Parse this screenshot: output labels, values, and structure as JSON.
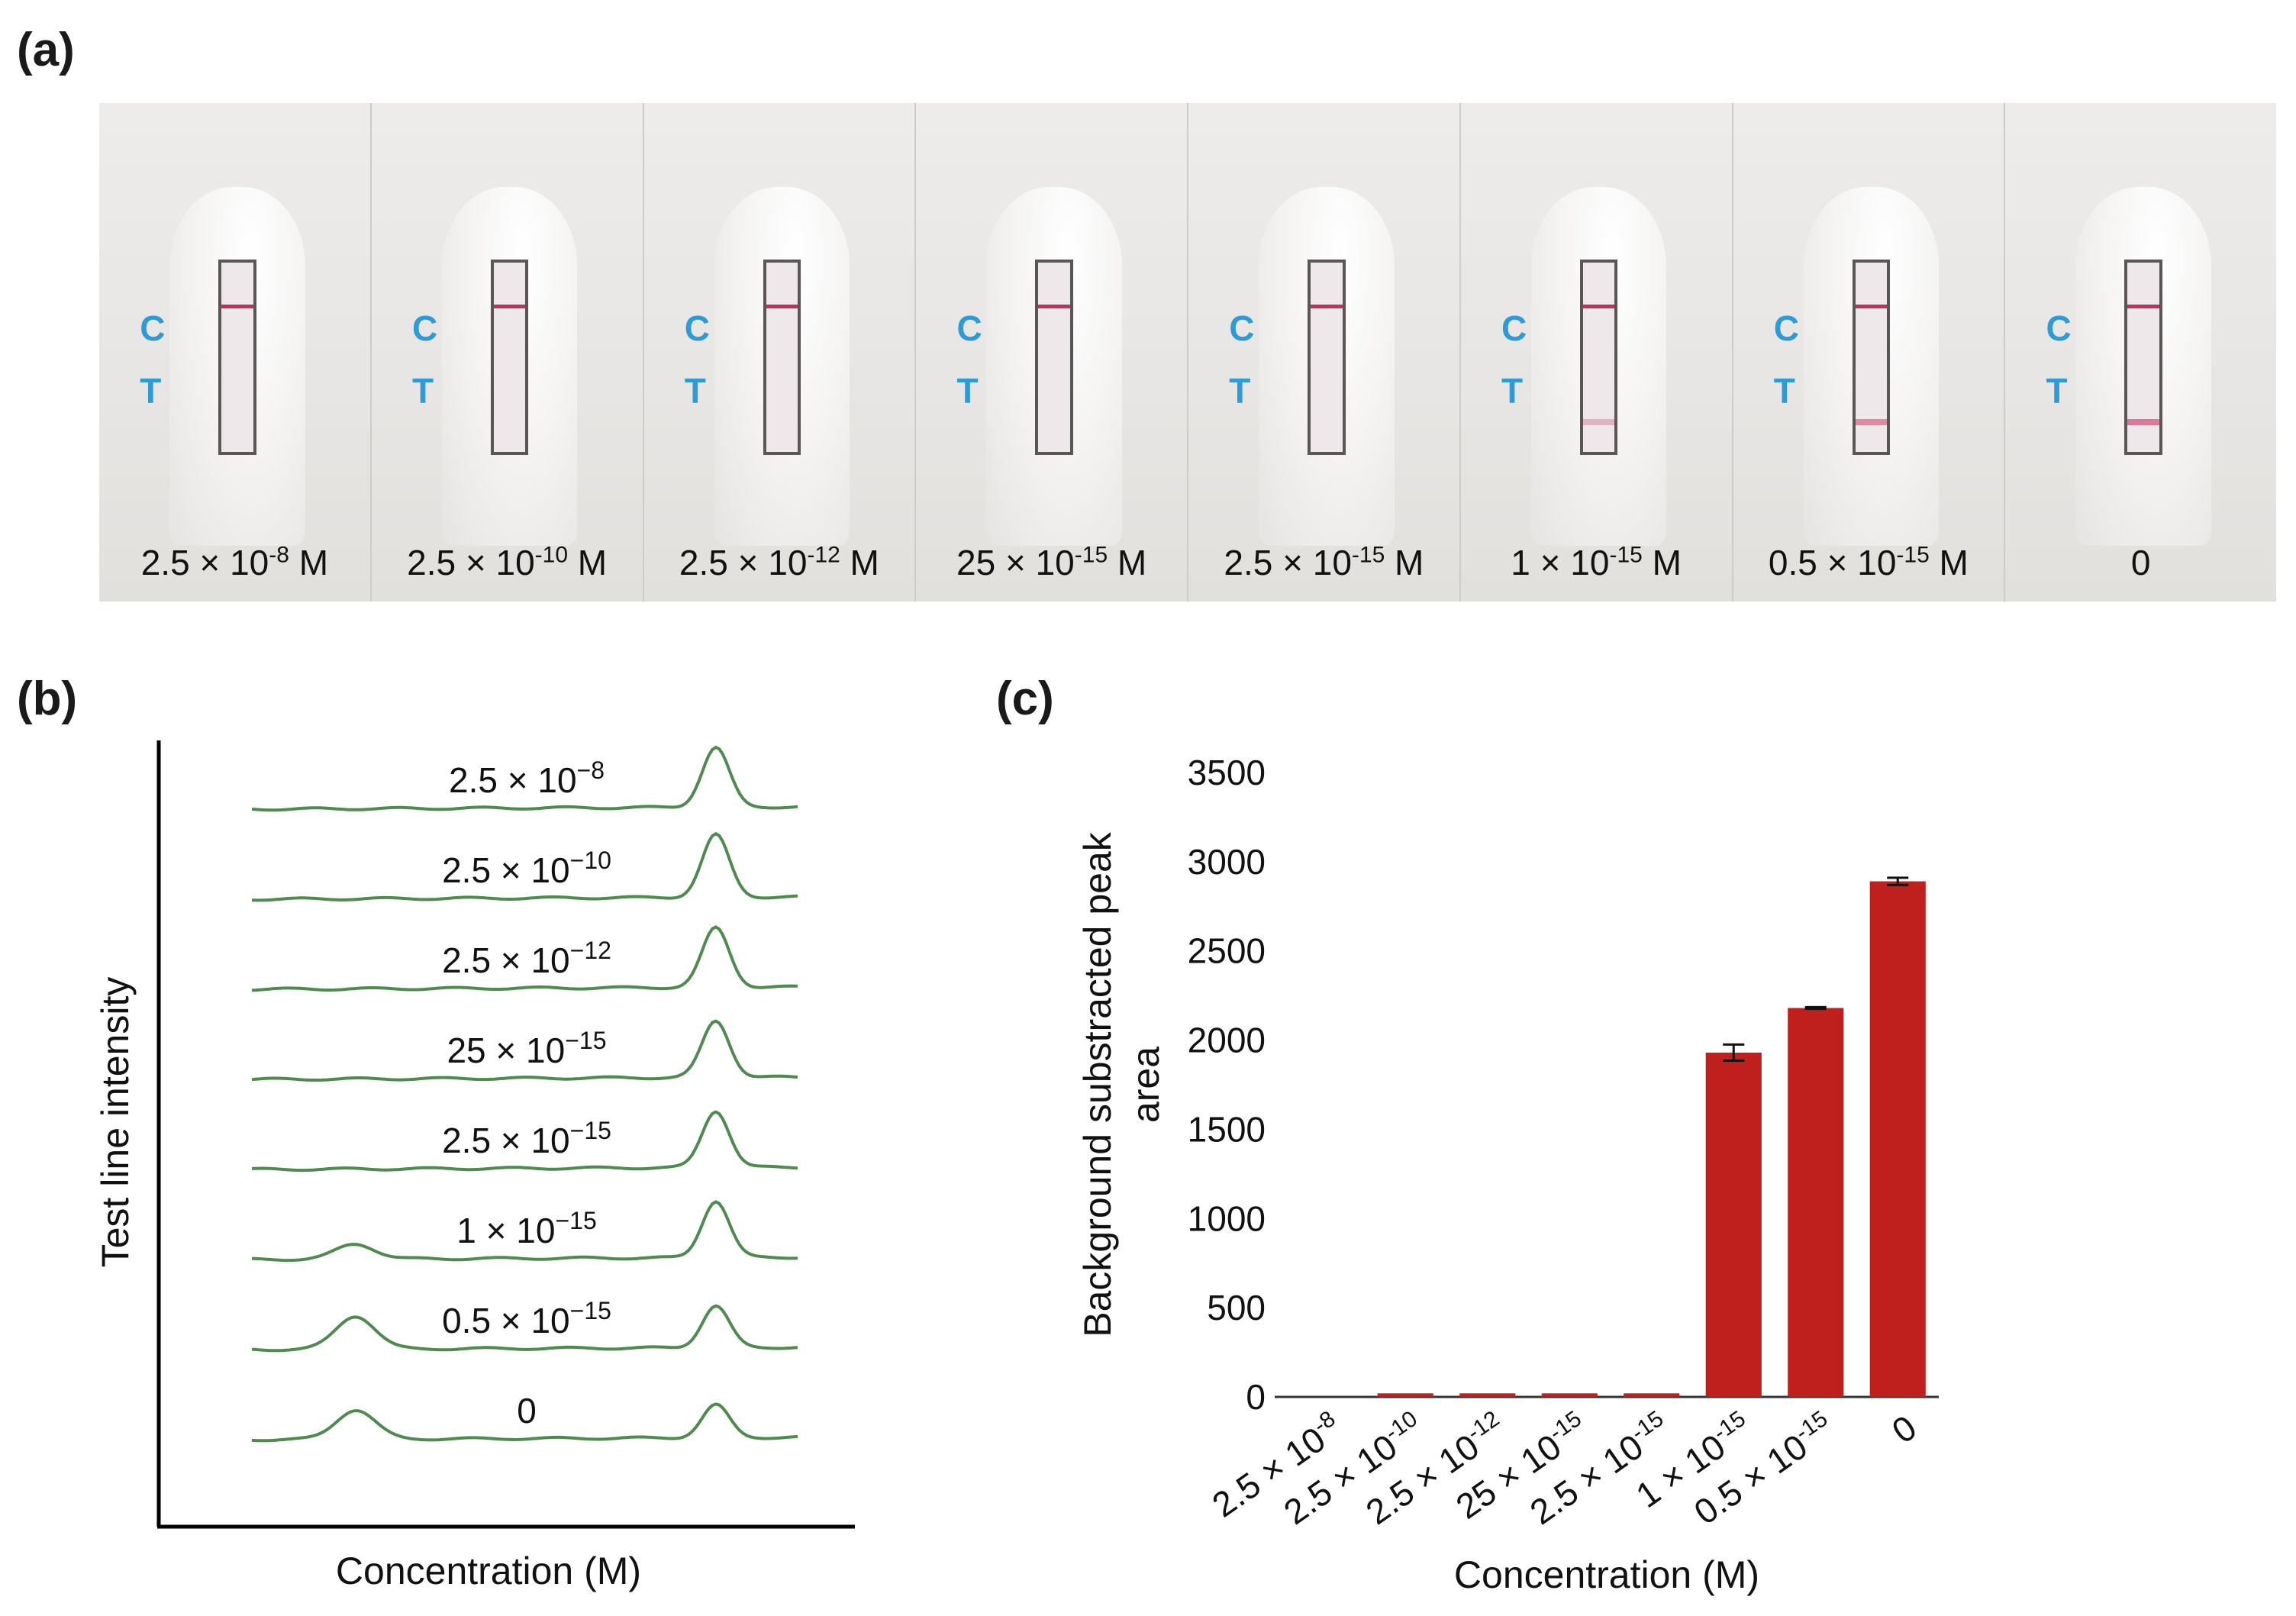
{
  "panels": {
    "a": "(a)",
    "b": "(b)",
    "c": "(c)"
  },
  "strip": {
    "c_letter": "C",
    "t_letter": "T",
    "cassettes": [
      {
        "mantissa": "2.5 ×",
        "base": "10",
        "exponent": "-8",
        "unit": "M",
        "test_line_visible": 0
      },
      {
        "mantissa": "2.5 ×",
        "base": "10",
        "exponent": "-10",
        "unit": "M",
        "test_line_visible": 0
      },
      {
        "mantissa": "2.5 ×",
        "base": "10",
        "exponent": "-12",
        "unit": "M",
        "test_line_visible": 0
      },
      {
        "mantissa": "25 ×",
        "base": "10",
        "exponent": "-15",
        "unit": "M",
        "test_line_visible": 0
      },
      {
        "mantissa": "2.5 ×",
        "base": "10",
        "exponent": "-15",
        "unit": "M",
        "test_line_visible": 0
      },
      {
        "mantissa": "1 ×",
        "base": "10",
        "exponent": "-15",
        "unit": "M",
        "test_line_visible": 0.35
      },
      {
        "mantissa": "0.5 ×",
        "base": "10",
        "exponent": "-15",
        "unit": "M",
        "test_line_visible": 0.6
      },
      {
        "mantissa": "0",
        "base": "",
        "exponent": "",
        "unit": "",
        "test_line_visible": 0.7
      }
    ],
    "colors": {
      "control_line": "#c0325a",
      "test_line": "#cf4d77"
    }
  },
  "chart_data": [
    {
      "panel": "b",
      "type": "line",
      "title": "",
      "xlabel": "Concentration (M)",
      "ylabel": "Test line intensity",
      "grid": false,
      "line_color": "#4f8a4f",
      "series": [
        {
          "name": "2.5 × 10−8",
          "label_text": "2.5 × 10",
          "label_exp": "−8",
          "t_peak": 0.0,
          "c_peak": 1.0
        },
        {
          "name": "2.5 × 10−10",
          "label_text": "2.5 × 10",
          "label_exp": "−10",
          "t_peak": 0.0,
          "c_peak": 1.05
        },
        {
          "name": "2.5 × 10−12",
          "label_text": "2.5 × 10",
          "label_exp": "−12",
          "t_peak": 0.0,
          "c_peak": 1.0
        },
        {
          "name": "25 × 10−15",
          "label_text": "25 × 10",
          "label_exp": "−15",
          "t_peak": 0.0,
          "c_peak": 0.95
        },
        {
          "name": "2.5 × 10−15",
          "label_text": "2.5 × 10",
          "label_exp": "−15",
          "t_peak": 0.0,
          "c_peak": 0.95
        },
        {
          "name": "1 × 10−15",
          "label_text": "1 × 10",
          "label_exp": "−15",
          "t_peak": 0.28,
          "c_peak": 0.95
        },
        {
          "name": "0.5 × 10−15",
          "label_text": "0.5 × 10",
          "label_exp": "−15",
          "t_peak": 0.62,
          "c_peak": 0.7
        },
        {
          "name": "0",
          "label_text": "0",
          "label_exp": "",
          "t_peak": 0.55,
          "c_peak": 0.55
        }
      ]
    },
    {
      "panel": "c",
      "type": "bar",
      "title": "",
      "xlabel": "Concentration (M)",
      "ylabel_line1": "Background substracted peak",
      "ylabel_line2": "area",
      "ylim": [
        0,
        3500
      ],
      "yticks": [
        0,
        500,
        1000,
        1500,
        2000,
        2500,
        3000,
        3500
      ],
      "grid": false,
      "bar_color": "#c0201d",
      "categories": [
        {
          "text": "2.5 × 10",
          "exp": "-8"
        },
        {
          "text": "2.5 × 10",
          "exp": "-10"
        },
        {
          "text": "2.5 × 10",
          "exp": "-12"
        },
        {
          "text": "25 × 10",
          "exp": "-15"
        },
        {
          "text": "2.5 × 10",
          "exp": "-15"
        },
        {
          "text": "1 × 10",
          "exp": "-15"
        },
        {
          "text": "0.5 × 10",
          "exp": "-15"
        },
        {
          "text": "0",
          "exp": ""
        }
      ],
      "values": [
        0,
        20,
        20,
        20,
        20,
        1930,
        2180,
        2890
      ],
      "errors": [
        0,
        0,
        0,
        0,
        0,
        45,
        5,
        20
      ]
    }
  ]
}
